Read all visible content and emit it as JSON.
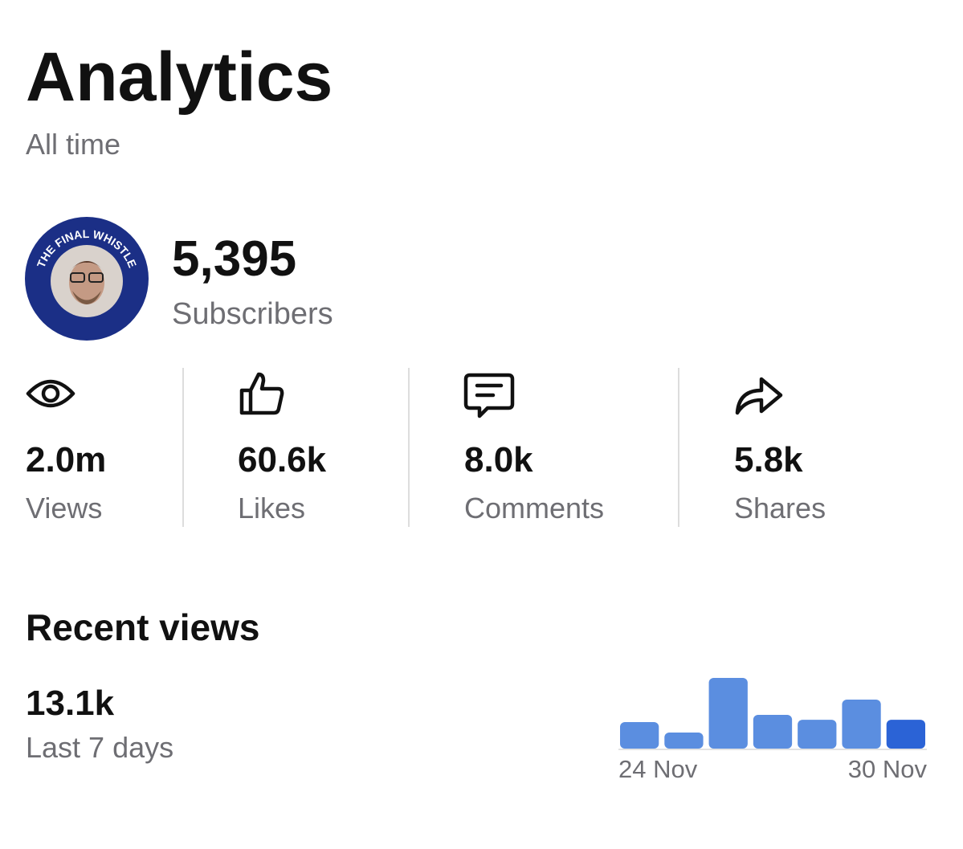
{
  "header": {
    "title": "Analytics",
    "subtitle": "All time"
  },
  "channel": {
    "avatar_text": "THE FINAL WHISTLE",
    "subscribers": "5,395",
    "subscribers_label": "Subscribers"
  },
  "stats": [
    {
      "value": "2.0m",
      "label": "Views"
    },
    {
      "value": "60.6k",
      "label": "Likes"
    },
    {
      "value": "8.0k",
      "label": "Comments"
    },
    {
      "value": "5.8k",
      "label": "Shares"
    }
  ],
  "recent_views": {
    "title": "Recent views",
    "total": "13.1k",
    "period": "Last 7 days",
    "chart": {
      "type": "bar",
      "categories": [
        "24 Nov",
        null,
        null,
        null,
        null,
        null,
        "30 Nov"
      ],
      "values": [
        1370,
        830,
        3650,
        1740,
        1490,
        2530,
        1490
      ],
      "colors": [
        "#5b8ee0",
        "#5b8ee0",
        "#5b8ee0",
        "#5b8ee0",
        "#5b8ee0",
        "#5b8ee0",
        "#2b63d6"
      ],
      "ylim": [
        0,
        3650
      ]
    }
  }
}
